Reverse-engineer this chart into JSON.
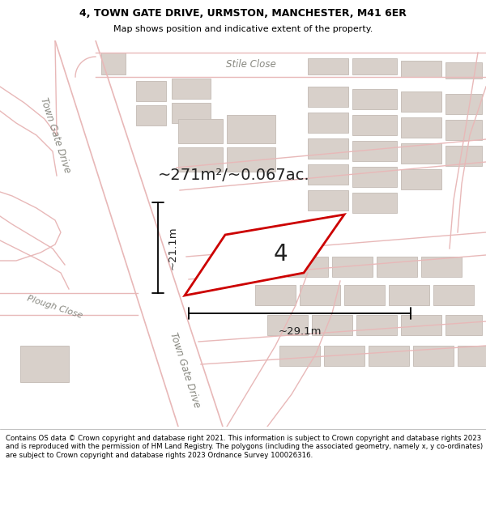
{
  "title_line1": "4, TOWN GATE DRIVE, URMSTON, MANCHESTER, M41 6ER",
  "title_line2": "Map shows position and indicative extent of the property.",
  "footer_text": "Contains OS data © Crown copyright and database right 2021. This information is subject to Crown copyright and database rights 2023 and is reproduced with the permission of HM Land Registry. The polygons (including the associated geometry, namely x, y co-ordinates) are subject to Crown copyright and database rights 2023 Ordnance Survey 100026316.",
  "area_label": "~271m²/~0.067ac.",
  "property_number": "4",
  "dim_width": "~29.1m",
  "dim_height": "~21.1m",
  "bg_color": "#f2eeea",
  "road_fill": "#ffffff",
  "road_edge": "#e8b8b8",
  "building_fill": "#d8d0ca",
  "building_edge": "#c8c0ba",
  "property_fill": "#ffffff",
  "property_stroke": "#cc0000",
  "label_color": "#888880",
  "text_color": "#222222",
  "title_fontsize": 9,
  "subtitle_fontsize": 8,
  "footer_fontsize": 6.2,
  "area_fontsize": 14,
  "number_fontsize": 20,
  "dim_fontsize": 9.5,
  "street_fontsize": 8.5
}
